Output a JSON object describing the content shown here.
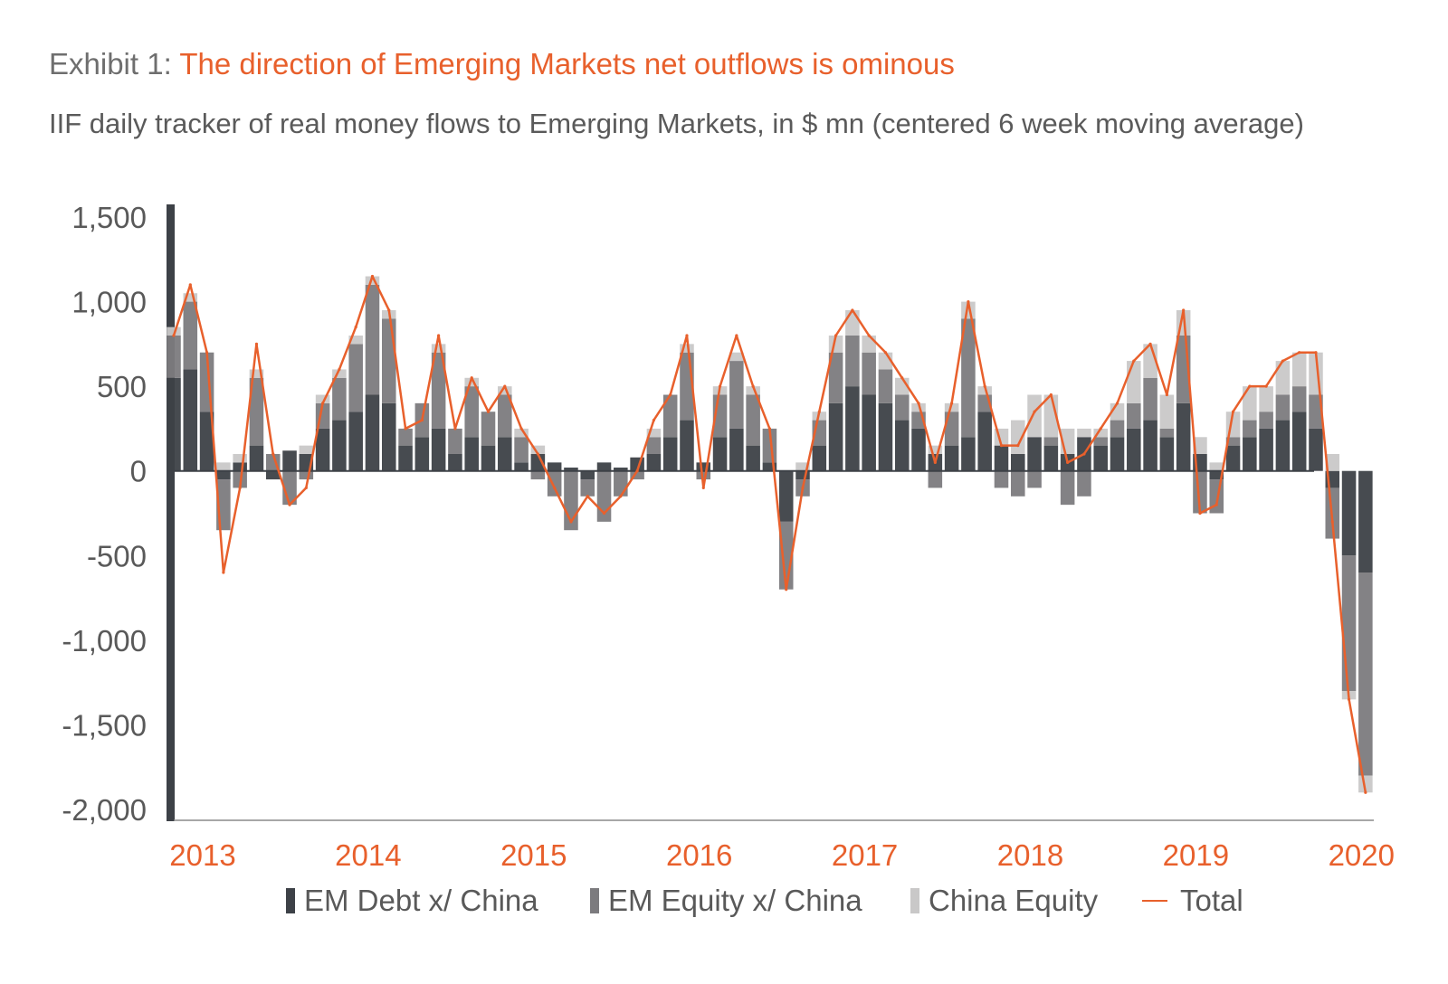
{
  "title": {
    "prefix": "Exhibit 1: ",
    "main": "The direction of Emerging Markets net outflows is ominous"
  },
  "subtitle": "IIF daily tracker of real money flows to Emerging Markets, in $ mn (centered 6 week moving average)",
  "colors": {
    "em_debt": "#3d4147",
    "em_equity": "#7c7b7e",
    "china_equity": "#c9c8c8",
    "total": "#e8602c",
    "tick_text": "#595959",
    "year_text": "#e8602c"
  },
  "chart_data": {
    "type": "bar",
    "ylim": [
      -2000,
      1500
    ],
    "xlim": [
      2013.0,
      2020.25
    ],
    "ytick_labels": [
      "1,500",
      "1,000",
      "500",
      "0",
      "-500",
      "-1,000",
      "-1,500",
      "-2,000"
    ],
    "ytick_values": [
      1500,
      1000,
      500,
      0,
      -500,
      -1000,
      -1500,
      -2000
    ],
    "xtick_labels": [
      "2013",
      "2014",
      "2015",
      "2016",
      "2017",
      "2018",
      "2019",
      "2020"
    ],
    "xtick_values": [
      2013.0,
      2014.0,
      2015.0,
      2016.0,
      2017.0,
      2018.0,
      2019.0,
      2020.0
    ],
    "legend": "bottom-center",
    "x": [
      2013.0,
      2013.1,
      2013.2,
      2013.3,
      2013.4,
      2013.5,
      2013.6,
      2013.7,
      2013.8,
      2013.9,
      2014.0,
      2014.1,
      2014.2,
      2014.3,
      2014.4,
      2014.5,
      2014.6,
      2014.7,
      2014.8,
      2014.9,
      2015.0,
      2015.1,
      2015.2,
      2015.3,
      2015.4,
      2015.5,
      2015.6,
      2015.7,
      2015.8,
      2015.9,
      2016.0,
      2016.1,
      2016.2,
      2016.3,
      2016.4,
      2016.5,
      2016.6,
      2016.7,
      2016.8,
      2016.9,
      2017.0,
      2017.1,
      2017.2,
      2017.3,
      2017.4,
      2017.5,
      2017.6,
      2017.7,
      2017.8,
      2017.9,
      2018.0,
      2018.1,
      2018.2,
      2018.3,
      2018.4,
      2018.5,
      2018.6,
      2018.7,
      2018.8,
      2018.9,
      2019.0,
      2019.1,
      2019.2,
      2019.3,
      2019.4,
      2019.5,
      2019.6,
      2019.7,
      2019.8,
      2019.9,
      2020.0,
      2020.1,
      2020.2
    ],
    "series": [
      {
        "name": "EM Debt x/ China",
        "values": [
          550,
          600,
          350,
          -50,
          50,
          150,
          -50,
          120,
          100,
          250,
          300,
          350,
          450,
          400,
          150,
          200,
          250,
          100,
          200,
          150,
          200,
          50,
          100,
          50,
          20,
          -50,
          50,
          20,
          80,
          100,
          200,
          300,
          50,
          200,
          250,
          150,
          50,
          -300,
          -50,
          150,
          400,
          500,
          450,
          400,
          300,
          250,
          100,
          150,
          200,
          350,
          150,
          100,
          200,
          150,
          100,
          200,
          150,
          200,
          250,
          300,
          200,
          400,
          100,
          -50,
          150,
          200,
          250,
          300,
          350,
          250,
          -100,
          -500,
          -600
        ]
      },
      {
        "name": "EM Equity x/ China",
        "values": [
          250,
          400,
          350,
          -300,
          -100,
          400,
          100,
          -200,
          -50,
          150,
          250,
          400,
          650,
          500,
          100,
          200,
          450,
          150,
          300,
          200,
          250,
          150,
          -50,
          -150,
          -350,
          -100,
          -300,
          -150,
          -50,
          100,
          250,
          400,
          -50,
          250,
          400,
          300,
          200,
          -400,
          -100,
          150,
          300,
          300,
          250,
          200,
          150,
          100,
          -100,
          200,
          700,
          100,
          -100,
          -150,
          -100,
          50,
          -200,
          -150,
          50,
          100,
          150,
          250,
          50,
          400,
          -250,
          -200,
          50,
          100,
          100,
          150,
          150,
          200,
          -300,
          -800,
          -1200
        ]
      },
      {
        "name": "China Equity",
        "values": [
          50,
          50,
          0,
          50,
          50,
          50,
          0,
          0,
          50,
          50,
          50,
          50,
          50,
          50,
          0,
          0,
          50,
          0,
          50,
          0,
          50,
          50,
          50,
          0,
          0,
          0,
          0,
          0,
          0,
          50,
          0,
          50,
          0,
          50,
          50,
          50,
          0,
          0,
          50,
          50,
          100,
          150,
          100,
          100,
          100,
          50,
          50,
          50,
          100,
          50,
          100,
          200,
          250,
          250,
          150,
          50,
          50,
          100,
          250,
          200,
          200,
          150,
          100,
          50,
          150,
          200,
          150,
          200,
          200,
          250,
          100,
          -50,
          -100
        ]
      },
      {
        "name": "Total",
        "values": [
          800,
          1100,
          700,
          -600,
          -100,
          750,
          100,
          -200,
          -100,
          400,
          600,
          850,
          1150,
          950,
          250,
          300,
          800,
          250,
          550,
          350,
          500,
          250,
          100,
          -100,
          -300,
          -150,
          -250,
          -150,
          0,
          300,
          450,
          800,
          -100,
          500,
          800,
          500,
          250,
          -700,
          -100,
          350,
          800,
          950,
          800,
          700,
          550,
          400,
          50,
          400,
          1000,
          500,
          150,
          150,
          350,
          450,
          50,
          100,
          250,
          400,
          650,
          750,
          450,
          950,
          -250,
          -200,
          350,
          500,
          500,
          650,
          700,
          700,
          -300,
          -1350,
          -1900
        ]
      }
    ]
  }
}
